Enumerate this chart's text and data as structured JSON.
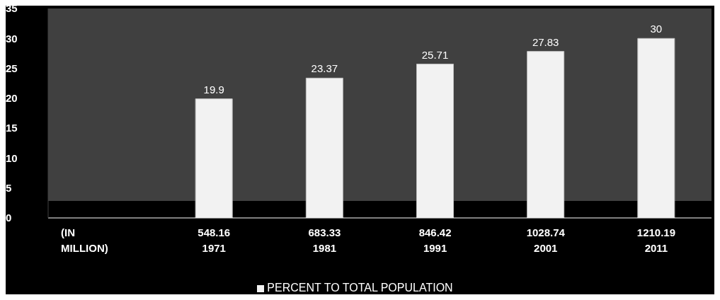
{
  "chart_data": {
    "type": "bar",
    "categories": [
      "(IN\nMILLION)",
      "548.16\n\n1971",
      "683.33\n\n1981",
      "846.42\n\n1991",
      "1028.74\n\n2001",
      "1210.19\n\n2011"
    ],
    "series": [
      {
        "name": "PERCENT TO TOTAL POPULATION",
        "color": "#f2f2f2",
        "values": [
          null,
          19.9,
          23.37,
          25.71,
          27.83,
          30
        ]
      }
    ],
    "ylim": [
      0,
      35
    ],
    "yticks": [
      0,
      5,
      10,
      15,
      20,
      25,
      30,
      35
    ],
    "grid": false,
    "legend": "bottom",
    "data_labels": true
  }
}
